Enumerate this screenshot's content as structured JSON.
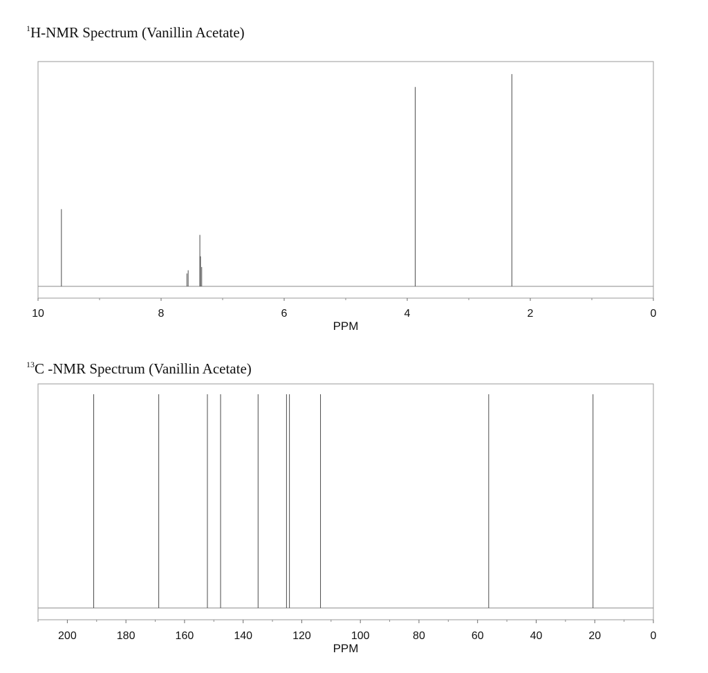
{
  "charts": {
    "h": {
      "title_sup": "1",
      "title_text": "H-NMR Spectrum (Vanillin Acetate)",
      "xlabel": "PPM"
    },
    "c": {
      "title_sup": "13",
      "title_text": "C -NMR Spectrum (Vanillin Acetate)",
      "xlabel": "PPM"
    }
  },
  "chart_data": [
    {
      "type": "line",
      "title": "1H-NMR Spectrum (Vanillin Acetate)",
      "xlabel": "PPM",
      "ylabel": "",
      "xlim": [
        10,
        0
      ],
      "xticks": [
        10,
        8,
        6,
        4,
        2,
        0
      ],
      "minor_step": 1,
      "grid": false,
      "peaks": [
        {
          "ppm": 9.62,
          "height": 0.36
        },
        {
          "ppm": 7.58,
          "height": 0.06
        },
        {
          "ppm": 7.56,
          "height": 0.075
        },
        {
          "ppm": 7.37,
          "height": 0.24
        },
        {
          "ppm": 7.36,
          "height": 0.14
        },
        {
          "ppm": 7.34,
          "height": 0.09
        },
        {
          "ppm": 3.87,
          "height": 0.93
        },
        {
          "ppm": 2.3,
          "height": 0.99
        }
      ]
    },
    {
      "type": "line",
      "title": "13C -NMR Spectrum (Vanillin Acetate)",
      "xlabel": "PPM",
      "ylabel": "",
      "xlim": [
        210,
        0
      ],
      "xticks": [
        200,
        180,
        160,
        140,
        120,
        100,
        80,
        60,
        40,
        20,
        0
      ],
      "minor_step": 10,
      "grid": false,
      "peaks": [
        {
          "ppm": 191.0,
          "height": 1
        },
        {
          "ppm": 168.8,
          "height": 1
        },
        {
          "ppm": 152.2,
          "height": 1
        },
        {
          "ppm": 147.7,
          "height": 1
        },
        {
          "ppm": 134.9,
          "height": 1
        },
        {
          "ppm": 125.2,
          "height": 1
        },
        {
          "ppm": 124.2,
          "height": 1
        },
        {
          "ppm": 113.6,
          "height": 1
        },
        {
          "ppm": 56.2,
          "height": 1
        },
        {
          "ppm": 20.6,
          "height": 1
        }
      ]
    }
  ]
}
